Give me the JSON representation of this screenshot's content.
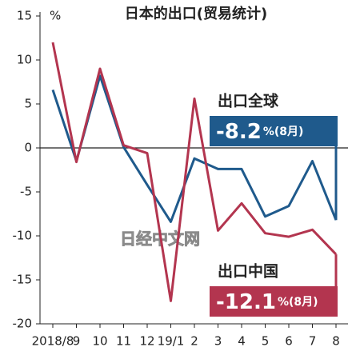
{
  "chart_data": {
    "type": "line",
    "title": "日本的出口(贸易统计)",
    "y_unit": "%",
    "watermark": "日经中文网",
    "categories": [
      "2018/8",
      "9",
      "10",
      "11",
      "12",
      "19/1",
      "2",
      "3",
      "4",
      "5",
      "6",
      "7",
      "8"
    ],
    "series": [
      {
        "name": "出口全球",
        "color": "#1f5a8c",
        "values": [
          6.6,
          -1.5,
          8.2,
          0.1,
          -4.2,
          -8.4,
          -1.2,
          -2.4,
          -2.4,
          -7.8,
          -6.6,
          -1.5,
          -8.2
        ],
        "box_value": "-8.2",
        "box_suffix": "%(8月)"
      },
      {
        "name": "出口中国",
        "color": "#b3354f",
        "values": [
          12,
          -1.6,
          9,
          0.3,
          -0.6,
          -17.4,
          5.6,
          -9.4,
          -6.3,
          -9.7,
          -10.1,
          -9.3,
          -12.1
        ],
        "box_value": "-12.1",
        "box_suffix": "%(8月)"
      }
    ],
    "ylim": [
      -20,
      15
    ],
    "yticks": [
      15,
      10,
      5,
      0,
      -5,
      -10,
      -15,
      -20
    ]
  }
}
